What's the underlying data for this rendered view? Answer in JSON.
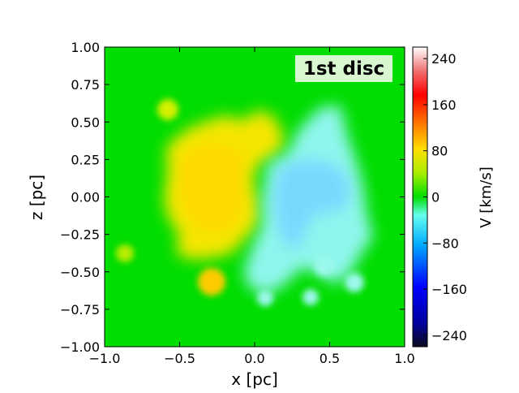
{
  "chart_data": {
    "type": "heatmap",
    "annotation": "1st disc",
    "xlabel": "x [pc]",
    "ylabel": "z [pc]",
    "xlim": [
      -1.0,
      1.0
    ],
    "ylim": [
      -1.0,
      1.0
    ],
    "x_ticks": [
      "−1.0",
      "−0.5",
      "0.0",
      "0.5",
      "1.0"
    ],
    "y_ticks": [
      "1.00",
      "0.75",
      "0.50",
      "0.25",
      "0.00",
      "−0.25",
      "−0.50",
      "−0.75",
      "−1.00"
    ],
    "colorbar": {
      "label": "V [km/s]",
      "range": [
        -260,
        260
      ],
      "ticks": [
        "240",
        "160",
        "80",
        "0",
        "−80",
        "−160",
        "−240"
      ],
      "colormap": "jet with white top and black bottom"
    },
    "background_value_kms": 0,
    "regions": [
      {
        "description": "approaching (positive) lobe, left side",
        "x": -0.3,
        "z": 0.05,
        "value_kms": 50
      },
      {
        "description": "receding (negative) lobe, right side",
        "x": 0.4,
        "z": 0.05,
        "value_kms": -60
      },
      {
        "description": "clump",
        "x": -0.3,
        "z": -0.57,
        "value_kms": 70
      },
      {
        "description": "clump",
        "x": -0.58,
        "z": 0.58,
        "value_kms": 35
      },
      {
        "description": "clump",
        "x": -0.87,
        "z": -0.37,
        "value_kms": 30
      },
      {
        "description": "clump",
        "x": 0.5,
        "z": -0.47,
        "value_kms": -45
      },
      {
        "description": "clump",
        "x": 0.65,
        "z": -0.57,
        "value_kms": -45
      },
      {
        "description": "clump",
        "x": 0.37,
        "z": -0.65,
        "value_kms": -40
      }
    ]
  }
}
